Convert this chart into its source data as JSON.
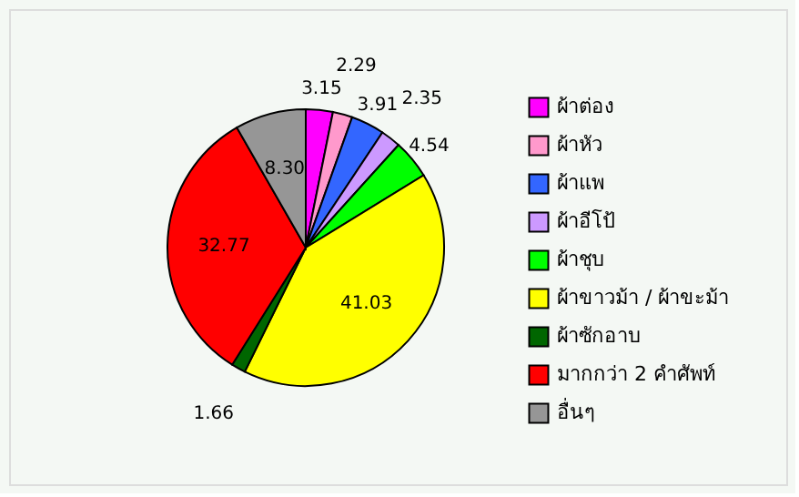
{
  "chart_data": {
    "type": "pie",
    "categories": [
      "ผ้าต่อง",
      "ผ้าหัว",
      "ผ้าแพ",
      "ผ้าอีโป้",
      "ผ้าชุบ",
      "ผ้าขาวม้า / ผ้าขะม้า",
      "ผ้าซักอาบ",
      "มากกว่า 2 คำศัพท์",
      "อื่นๆ"
    ],
    "values": [
      3.15,
      2.29,
      3.91,
      2.35,
      4.54,
      41.03,
      1.66,
      32.77,
      8.3
    ],
    "value_labels": [
      "3.15",
      "2.29",
      "3.91",
      "2.35",
      "4.54",
      "41.03",
      "1.66",
      "32.77",
      "8.30"
    ],
    "colors": [
      "#ff00ff",
      "#ff99cc",
      "#3366ff",
      "#cc99ff",
      "#00ff00",
      "#ffff00",
      "#006600",
      "#ff0000",
      "#969696"
    ],
    "legend": "right"
  }
}
